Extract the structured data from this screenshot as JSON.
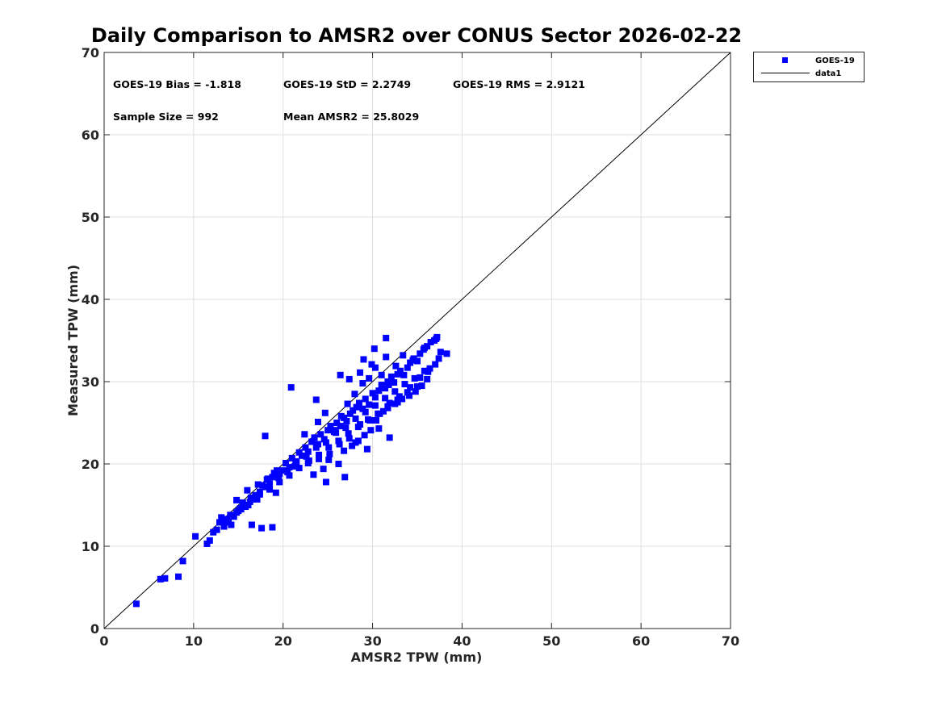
{
  "chart_data": {
    "type": "scatter",
    "title": "Daily Comparison to AMSR2 over CONUS Sector 2026-02-22",
    "xlabel": "AMSR2 TPW (mm)",
    "ylabel": "Measured TPW (mm)",
    "xlim": [
      0,
      70
    ],
    "ylim": [
      0,
      70
    ],
    "xticks": [
      "0",
      "10",
      "20",
      "30",
      "40",
      "50",
      "60",
      "70"
    ],
    "yticks": [
      "0",
      "10",
      "20",
      "30",
      "40",
      "50",
      "60",
      "70"
    ],
    "grid": true,
    "legend_position": "outside-top-right",
    "colors": {
      "marker": "#0000ff",
      "line": "#000000",
      "grid": "#dfdfdf"
    },
    "annotations": [
      "GOES-19 Bias = -1.818",
      "GOES-19 StD = 2.2749",
      "GOES-19 RMS = 2.9121",
      "Sample Size = 992",
      "Mean AMSR2 = 25.8029"
    ],
    "series": [
      {
        "name": "GOES-19",
        "kind": "markers",
        "x": [
          3.6,
          6.3,
          6.8,
          8.3,
          8.8,
          10.2,
          11.5,
          11.8,
          12.2,
          12.6,
          12.9,
          13.1,
          13.4,
          13.7,
          13.9,
          14.2,
          14.5,
          14.8,
          15.0,
          15.3,
          15.5,
          15.8,
          16.1,
          16.4,
          16.6,
          16.9,
          17.1,
          17.4,
          17.7,
          18.0,
          18.2,
          18.5,
          18.8,
          19.0,
          19.3,
          19.6,
          20.0,
          20.3,
          20.7,
          21.0,
          21.4,
          21.8,
          22.1,
          22.5,
          22.8,
          23.2,
          23.5,
          23.9,
          24.2,
          24.6,
          25.0,
          25.3,
          25.7,
          26.0,
          26.4,
          26.8,
          27.1,
          27.5,
          27.8,
          28.2,
          28.5,
          28.9,
          29.2,
          29.6,
          30.0,
          30.3,
          30.7,
          31.0,
          31.4,
          31.7,
          32.1,
          32.4,
          32.8,
          33.1,
          33.5,
          33.9,
          34.2,
          34.6,
          35.0,
          35.3,
          35.7,
          36.1,
          36.5,
          36.9,
          37.2,
          37.6,
          38.3,
          13.5,
          14.8,
          16.0,
          17.2,
          18.3,
          16.5,
          17.6,
          18.8,
          19.2,
          21.3,
          22.8,
          23.4,
          24.5,
          25.1,
          26.2,
          26.8,
          27.7,
          28.4,
          29.1,
          29.8,
          30.4,
          31.2,
          31.7,
          32.5,
          33.3,
          34.1,
          34.8,
          35.5,
          36.2,
          37.0,
          37.4,
          22.4,
          23.9,
          24.7,
          25.8,
          26.5,
          27.2,
          28.0,
          28.9,
          29.6,
          30.3,
          31.0,
          31.8,
          32.6,
          33.4,
          34.5,
          35.8,
          37.1,
          24.0,
          25.2,
          26.3,
          27.4,
          28.6,
          29.7,
          30.8,
          31.9,
          33.0,
          34.2,
          35.3,
          36.4,
          19.5,
          20.5,
          21.5,
          22.6,
          23.7,
          24.8,
          25.9,
          27.0,
          28.1,
          29.2,
          30.3,
          31.4,
          32.5,
          33.6,
          34.7,
          35.8,
          14.1,
          15.2,
          16.3,
          17.4,
          18.5,
          19.6,
          20.7,
          21.8,
          22.9,
          24.0,
          25.1,
          26.2,
          27.3,
          28.4,
          29.5,
          30.6,
          31.7,
          32.8,
          33.9,
          35.0,
          36.1,
          24.8,
          26.9,
          28.1,
          29.4,
          30.7,
          31.9,
          27.4,
          28.6,
          29.9,
          30.2,
          31.5,
          32.8,
          18.0,
          20.9,
          23.7,
          26.4,
          31.5,
          29.0
        ],
        "y": [
          3.0,
          6.0,
          6.1,
          6.3,
          8.2,
          11.2,
          10.3,
          10.7,
          11.7,
          12.0,
          12.9,
          13.5,
          12.4,
          13.3,
          13.0,
          12.6,
          13.6,
          14.1,
          14.3,
          14.5,
          15.3,
          14.8,
          15.0,
          15.9,
          15.7,
          16.2,
          15.7,
          16.6,
          17.4,
          17.2,
          18.1,
          17.6,
          18.4,
          18.9,
          19.2,
          18.8,
          19.2,
          20.1,
          19.6,
          20.7,
          20.3,
          21.4,
          21.0,
          22.0,
          21.5,
          22.7,
          23.2,
          22.4,
          23.6,
          23.0,
          24.1,
          24.6,
          23.9,
          25.0,
          24.6,
          25.6,
          25.2,
          26.1,
          26.5,
          26.9,
          27.4,
          26.7,
          27.9,
          27.2,
          28.6,
          28.1,
          28.9,
          29.6,
          29.2,
          30.0,
          30.6,
          29.9,
          30.9,
          31.3,
          30.8,
          31.7,
          32.3,
          32.8,
          32.5,
          33.4,
          33.9,
          34.3,
          34.8,
          35.0,
          35.4,
          33.6,
          33.4,
          12.9,
          15.6,
          16.8,
          17.5,
          18.2,
          12.6,
          12.2,
          12.3,
          16.5,
          19.7,
          20.1,
          18.7,
          19.4,
          20.5,
          20.0,
          21.6,
          22.2,
          22.8,
          23.5,
          24.1,
          25.3,
          26.4,
          26.8,
          27.3,
          27.9,
          28.3,
          28.8,
          29.5,
          31.2,
          32.1,
          32.8,
          23.6,
          25.1,
          26.2,
          24.1,
          25.8,
          27.3,
          28.5,
          29.8,
          30.4,
          31.7,
          30.8,
          29.6,
          31.9,
          33.2,
          32.6,
          34.1,
          35.2,
          20.6,
          21.2,
          22.4,
          23.1,
          24.8,
          25.3,
          26.1,
          27.4,
          28.2,
          29.3,
          30.5,
          31.6,
          18.3,
          19.0,
          20.2,
          20.9,
          22.0,
          22.6,
          23.8,
          24.4,
          25.5,
          26.3,
          27.1,
          28.0,
          28.8,
          29.7,
          30.4,
          31.3,
          13.8,
          14.6,
          15.4,
          16.3,
          16.9,
          17.8,
          18.6,
          19.5,
          20.4,
          21.1,
          22.0,
          22.8,
          23.7,
          24.5,
          25.4,
          26.1,
          27.0,
          27.8,
          28.7,
          29.4,
          30.3,
          17.8,
          18.4,
          22.6,
          21.8,
          24.3,
          23.2,
          30.3,
          31.1,
          32.1,
          34.0,
          35.3,
          27.5,
          23.4,
          29.3,
          27.8,
          30.8,
          33.0,
          32.7
        ]
      },
      {
        "name": "data1",
        "kind": "line",
        "x": [
          0,
          70
        ],
        "y": [
          0,
          70
        ]
      }
    ]
  }
}
